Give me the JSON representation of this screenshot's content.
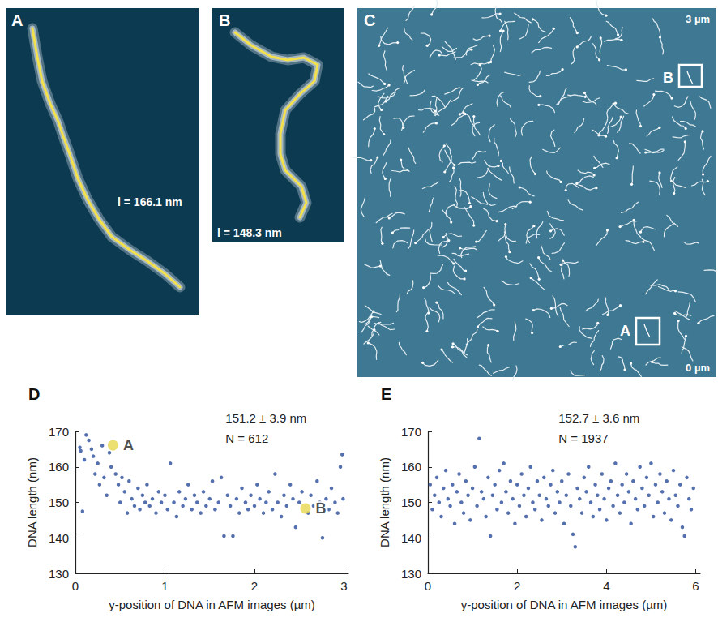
{
  "panels": [
    {
      "letter": "A",
      "length_label": "l = 166.1 nm"
    },
    {
      "letter": "B",
      "length_label": "l = 148.3 nm"
    },
    {
      "letter": "C",
      "scale_top": "3 µm",
      "scale_bottom": "0 µm",
      "boxes": [
        "A",
        "B"
      ]
    }
  ],
  "chart_data": [
    {
      "type": "scatter",
      "title": "D",
      "x_label": "y-position of DNA in AFM images (µm)",
      "y_label": "DNA length (nm)",
      "annotations": [
        "151.2 ± 3.9 nm",
        "N = 612"
      ],
      "xlim": [
        0,
        3.05
      ],
      "xticks": [
        0,
        1,
        2,
        3
      ],
      "ylim": [
        130,
        170
      ],
      "yticks": [
        130,
        140,
        150,
        160,
        170
      ],
      "grid": false,
      "color": "#2b4c9b",
      "marker": "circle",
      "x": [
        0.05,
        0.06,
        0.08,
        0.1,
        0.12,
        0.15,
        0.18,
        0.2,
        0.22,
        0.25,
        0.27,
        0.3,
        0.32,
        0.35,
        0.38,
        0.4,
        0.45,
        0.48,
        0.5,
        0.52,
        0.55,
        0.58,
        0.6,
        0.63,
        0.66,
        0.7,
        0.72,
        0.75,
        0.78,
        0.8,
        0.83,
        0.86,
        0.9,
        0.93,
        0.96,
        1.0,
        1.03,
        1.06,
        1.1,
        1.13,
        1.16,
        1.2,
        1.23,
        1.26,
        1.3,
        1.33,
        1.36,
        1.4,
        1.43,
        1.46,
        1.5,
        1.53,
        1.56,
        1.6,
        1.63,
        1.66,
        1.7,
        1.73,
        1.76,
        1.8,
        1.83,
        1.86,
        1.9,
        1.93,
        1.96,
        2.0,
        2.03,
        2.06,
        2.1,
        2.13,
        2.16,
        2.2,
        2.23,
        2.26,
        2.3,
        2.33,
        2.36,
        2.4,
        2.43,
        2.46,
        2.5,
        2.53,
        2.6,
        2.63,
        2.66,
        2.7,
        2.73,
        2.76,
        2.8,
        2.83,
        2.86,
        2.9,
        2.93,
        2.96,
        2.98,
        2.99
      ],
      "values": [
        165.5,
        164.5,
        147.5,
        162,
        169,
        167.5,
        165,
        163,
        158,
        161,
        155,
        166,
        157,
        152,
        164,
        160,
        158,
        155,
        150,
        157,
        153,
        147,
        156,
        151,
        149,
        154,
        148,
        152,
        150,
        155,
        149,
        151,
        147,
        153,
        150,
        152,
        148,
        161,
        150,
        146,
        153,
        149,
        151,
        155,
        148,
        152,
        150,
        147,
        153,
        149,
        151,
        156,
        148,
        150,
        157,
        140.5,
        152,
        149,
        140.5,
        151,
        147,
        154,
        150,
        148,
        152,
        149,
        155,
        151,
        147,
        150,
        153,
        148,
        158,
        150,
        146,
        152,
        149,
        155,
        151,
        143,
        150,
        153,
        147,
        152,
        149,
        156,
        150,
        140,
        151,
        148,
        154,
        150,
        147,
        160,
        163.5,
        151
      ],
      "highlights": {
        "labels": [
          "A",
          "B"
        ],
        "x": [
          0.42,
          2.57
        ],
        "values": [
          166.1,
          148.3
        ],
        "color": "#e6d84e"
      }
    },
    {
      "type": "scatter",
      "title": "E",
      "x_label": "y-position of DNA in AFM images (µm)",
      "y_label": "DNA length (nm)",
      "annotations": [
        "152.7 ± 3.6 nm",
        "N = 1937"
      ],
      "xlim": [
        0,
        6.1
      ],
      "xticks": [
        0,
        2,
        4,
        6
      ],
      "ylim": [
        130,
        170
      ],
      "yticks": [
        130,
        140,
        150,
        160,
        170
      ],
      "grid": false,
      "color": "#2b4c9b",
      "marker": "circle",
      "x": [
        0.05,
        0.1,
        0.15,
        0.2,
        0.25,
        0.3,
        0.35,
        0.4,
        0.45,
        0.5,
        0.55,
        0.6,
        0.65,
        0.7,
        0.75,
        0.8,
        0.85,
        0.9,
        0.95,
        1.0,
        1.05,
        1.1,
        1.15,
        1.2,
        1.25,
        1.3,
        1.35,
        1.4,
        1.45,
        1.5,
        1.55,
        1.6,
        1.65,
        1.7,
        1.75,
        1.8,
        1.85,
        1.9,
        1.95,
        2.0,
        2.05,
        2.1,
        2.15,
        2.2,
        2.25,
        2.3,
        2.35,
        2.4,
        2.45,
        2.5,
        2.55,
        2.6,
        2.65,
        2.7,
        2.75,
        2.8,
        2.85,
        2.9,
        2.95,
        3.0,
        3.05,
        3.1,
        3.15,
        3.2,
        3.25,
        3.3,
        3.35,
        3.4,
        3.45,
        3.5,
        3.55,
        3.6,
        3.65,
        3.7,
        3.75,
        3.8,
        3.85,
        3.9,
        3.95,
        4.0,
        4.05,
        4.1,
        4.15,
        4.2,
        4.25,
        4.3,
        4.35,
        4.4,
        4.45,
        4.5,
        4.55,
        4.6,
        4.65,
        4.7,
        4.75,
        4.8,
        4.85,
        4.9,
        4.95,
        5.0,
        5.05,
        5.1,
        5.15,
        5.2,
        5.25,
        5.3,
        5.35,
        5.4,
        5.45,
        5.5,
        5.55,
        5.6,
        5.65,
        5.7,
        5.75,
        5.8,
        5.85,
        5.9,
        5.95
      ],
      "values": [
        155,
        148,
        152,
        157,
        150,
        146,
        154,
        159,
        151,
        149,
        155,
        144,
        153,
        158,
        150,
        147,
        156,
        152,
        145,
        154,
        160,
        149,
        168,
        153,
        151,
        146,
        157,
        140.5,
        152,
        155,
        148,
        159,
        150,
        161,
        153,
        147,
        156,
        151,
        144,
        155,
        149,
        158,
        152,
        146,
        154,
        160,
        150,
        148,
        156,
        152,
        145,
        157,
        151,
        149,
        155,
        159,
        147,
        153,
        150,
        156,
        144,
        152,
        158,
        149,
        141,
        137.5,
        154,
        151,
        147,
        157,
        153,
        160,
        150,
        146,
        155,
        152,
        148,
        158,
        151,
        145,
        154,
        156,
        149,
        161,
        152,
        147,
        155,
        150,
        158,
        153,
        144,
        156,
        151,
        148,
        160,
        154,
        149,
        157,
        152,
        161,
        146,
        155,
        150,
        158,
        153,
        147,
        156,
        151,
        145,
        159,
        152,
        149,
        155,
        143,
        140.5,
        157,
        151,
        148,
        154
      ]
    }
  ]
}
